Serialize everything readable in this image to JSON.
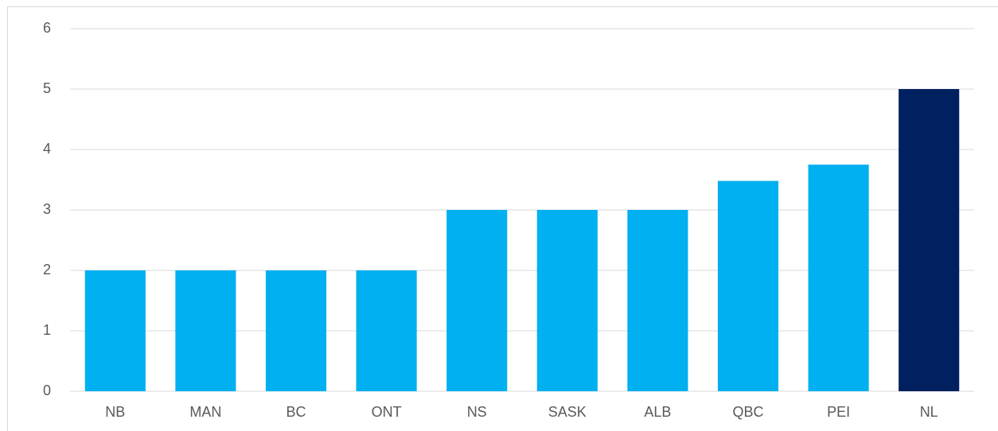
{
  "chart_data": {
    "type": "bar",
    "categories": [
      "NB",
      "MAN",
      "BC",
      "ONT",
      "NS",
      "SASK",
      "ALB",
      "QBC",
      "PEI",
      "NL"
    ],
    "values": [
      2,
      2,
      2,
      2,
      3,
      3,
      3,
      3.48,
      3.75,
      5
    ],
    "colors": [
      "#00b0f0",
      "#00b0f0",
      "#00b0f0",
      "#00b0f0",
      "#00b0f0",
      "#00b0f0",
      "#00b0f0",
      "#00b0f0",
      "#00b0f0",
      "#002060"
    ],
    "ylim": [
      0,
      6
    ],
    "yticks": [
      0,
      1,
      2,
      3,
      4,
      5,
      6
    ],
    "grid": true
  }
}
